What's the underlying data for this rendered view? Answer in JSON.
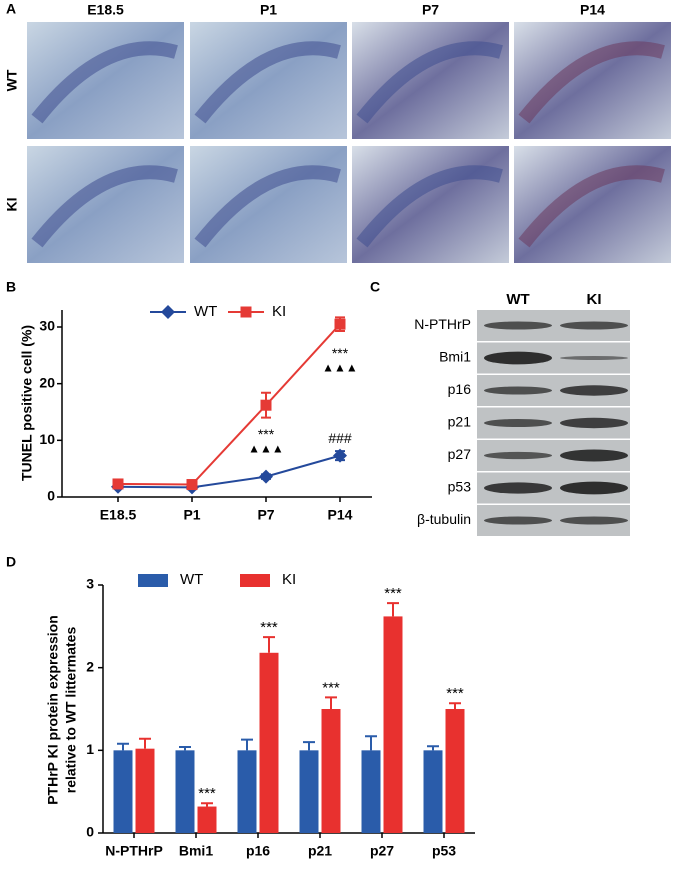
{
  "panel_a": {
    "label": "A",
    "columns": [
      "E18.5",
      "P1",
      "P7",
      "P14"
    ],
    "rows": [
      "WT",
      "KI"
    ]
  },
  "panel_c": {
    "label": "C",
    "columns": [
      "WT",
      "KI"
    ],
    "rows": [
      "N-PTHrP",
      "Bmi1",
      "p16",
      "p21",
      "p27",
      "p53",
      "β-tubulin"
    ]
  },
  "chart_data": [
    {
      "type": "line",
      "panel": "B",
      "y_label": "TUNEL positive cell (%)",
      "categories": [
        "E18.5",
        "P1",
        "P7",
        "P14"
      ],
      "ylim": [
        0,
        33
      ],
      "yticks": [
        0,
        10,
        20,
        30
      ],
      "series": [
        {
          "name": "WT",
          "color": "#24499b",
          "marker": "diamond",
          "values": [
            1.8,
            1.7,
            3.6,
            7.3
          ],
          "errors": [
            0.3,
            0.3,
            0.4,
            0.8
          ],
          "annotations": [
            null,
            null,
            null,
            [
              "###"
            ]
          ]
        },
        {
          "name": "KI",
          "color": "#e53a35",
          "marker": "square",
          "values": [
            2.3,
            2.2,
            16.2,
            30.5
          ],
          "errors": [
            0.4,
            0.3,
            2.2,
            1.2
          ],
          "annotations": [
            null,
            null,
            [
              "***",
              "▲▲▲"
            ],
            [
              "***",
              "▲▲▲"
            ]
          ]
        }
      ]
    },
    {
      "type": "bar",
      "panel": "D",
      "y_label": [
        "PTHrP KI protein expression",
        "relative to WT littermates"
      ],
      "categories": [
        "N-PTHrP",
        "Bmi1",
        "p16",
        "p21",
        "p27",
        "p53"
      ],
      "ylim": [
        0,
        3
      ],
      "yticks": [
        0,
        1,
        2,
        3
      ],
      "series": [
        {
          "name": "WT",
          "color": "#2a5caa",
          "values": [
            1,
            1,
            1,
            1,
            1,
            1
          ],
          "errors": [
            0.08,
            0.04,
            0.13,
            0.1,
            0.17,
            0.05
          ],
          "annotations": [
            null,
            null,
            null,
            null,
            null,
            null
          ]
        },
        {
          "name": "KI",
          "color": "#e8312f",
          "values": [
            1.02,
            0.32,
            2.18,
            1.5,
            2.62,
            1.5
          ],
          "errors": [
            0.12,
            0.04,
            0.19,
            0.14,
            0.16,
            0.07
          ],
          "annotations": [
            null,
            [
              "***"
            ],
            [
              "***"
            ],
            [
              "***"
            ],
            [
              "***"
            ],
            [
              "***"
            ]
          ]
        }
      ]
    }
  ]
}
